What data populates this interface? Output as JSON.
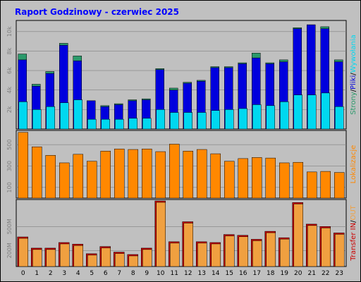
{
  "header": {
    "title": "Raport Godzinowy -  czerwiec 2025",
    "title_color": "#0000ff"
  },
  "colors": {
    "background": "#c0c0c0",
    "panel_border": "#000000",
    "grid": "#808080",
    "tick_label": "#7f7f7f",
    "strony": "#2b9a6b",
    "pliki": "#0000dd",
    "wywolania": "#00d8f0",
    "lokalizacje": "#ff8800",
    "transfer_in": "#cc0000",
    "transfer_out": "#f0a040"
  },
  "chart_data": [
    {
      "type": "bar",
      "panel": "hits",
      "categories": [
        "0",
        "1",
        "2",
        "3",
        "4",
        "5",
        "6",
        "7",
        "8",
        "9",
        "10",
        "11",
        "12",
        "13",
        "14",
        "15",
        "16",
        "17",
        "18",
        "19",
        "20",
        "21",
        "22",
        "23"
      ],
      "side_label_parts": [
        {
          "text": "Strony",
          "color": "#2b9a6b"
        },
        {
          "text": "/",
          "color": "#000000"
        },
        {
          "text": "Pliki",
          "color": "#0000dd"
        },
        {
          "text": "/",
          "color": "#000000"
        },
        {
          "text": "Wywołania",
          "color": "#00d8f0"
        }
      ],
      "yticks": [
        2000,
        4000,
        6000,
        8000,
        10000
      ],
      "ytick_labels": [
        "2k",
        "4k",
        "6k",
        "8k",
        "10k"
      ],
      "ylim": [
        0,
        11000
      ],
      "series": [
        {
          "name": "Strony",
          "color": "#2b9a6b",
          "values": [
            7700,
            4600,
            5900,
            8800,
            7500,
            2900,
            2400,
            2600,
            3000,
            3100,
            6200,
            4200,
            4800,
            5000,
            6400,
            6400,
            6800,
            7800,
            6800,
            7100,
            10400,
            10700,
            10500,
            7100
          ]
        },
        {
          "name": "Pliki",
          "color": "#0000dd",
          "values": [
            7100,
            4400,
            5700,
            8600,
            7000,
            2900,
            2300,
            2500,
            2900,
            3000,
            6100,
            4000,
            4700,
            4900,
            6300,
            6300,
            6700,
            7300,
            6700,
            6900,
            10300,
            10700,
            10300,
            6900
          ]
        },
        {
          "name": "Wywołania",
          "color": "#00d8f0",
          "values": [
            2800,
            2000,
            2300,
            2700,
            3000,
            1000,
            1000,
            1000,
            1100,
            1100,
            2000,
            1700,
            1700,
            1700,
            1900,
            2000,
            2100,
            2500,
            2400,
            2800,
            3500,
            3500,
            3700,
            2300
          ]
        }
      ]
    },
    {
      "type": "bar",
      "panel": "locations",
      "categories": [
        "0",
        "1",
        "2",
        "3",
        "4",
        "5",
        "6",
        "7",
        "8",
        "9",
        "10",
        "11",
        "12",
        "13",
        "14",
        "15",
        "16",
        "17",
        "18",
        "19",
        "20",
        "21",
        "22",
        "23"
      ],
      "side_label_parts": [
        {
          "text": "Lokalizacje",
          "color": "#ff8800"
        }
      ],
      "yticks": [
        100,
        300,
        500
      ],
      "ytick_labels": [
        "100",
        "300",
        "500"
      ],
      "ylim": [
        0,
        620
      ],
      "series": [
        {
          "name": "Lokalizacje",
          "color": "#ff8800",
          "values": [
            615,
            480,
            400,
            330,
            410,
            345,
            440,
            460,
            455,
            460,
            435,
            505,
            440,
            455,
            415,
            345,
            370,
            380,
            375,
            330,
            335,
            245,
            250,
            240
          ]
        }
      ]
    },
    {
      "type": "bar",
      "panel": "transfer",
      "categories": [
        "0",
        "1",
        "2",
        "3",
        "4",
        "5",
        "6",
        "7",
        "8",
        "9",
        "10",
        "11",
        "12",
        "13",
        "14",
        "15",
        "16",
        "17",
        "18",
        "19",
        "20",
        "21",
        "22",
        "23"
      ],
      "side_label_parts": [
        {
          "text": "Transfer",
          "color": "#cc0000"
        },
        {
          "text": " ",
          "color": "#000000"
        },
        {
          "text": "IN",
          "color": "#cc0000"
        },
        {
          "text": "/",
          "color": "#000000"
        },
        {
          "text": "OUT",
          "color": "#f0a040"
        }
      ],
      "yticks": [
        200,
        500
      ],
      "ytick_labels": [
        "200M",
        "500M"
      ],
      "ylim": [
        0,
        820
      ],
      "series": [
        {
          "name": "IN",
          "color": "#cc0000",
          "values": [
            370,
            230,
            230,
            300,
            280,
            160,
            250,
            180,
            150,
            230,
            820,
            310,
            560,
            310,
            300,
            400,
            390,
            340,
            440,
            360,
            800,
            530,
            500,
            420
          ]
        },
        {
          "name": "OUT",
          "color": "#f0a040",
          "values": [
            370,
            230,
            230,
            300,
            280,
            160,
            250,
            180,
            150,
            230,
            820,
            310,
            560,
            310,
            300,
            400,
            390,
            340,
            440,
            360,
            800,
            530,
            500,
            420
          ]
        }
      ]
    }
  ]
}
